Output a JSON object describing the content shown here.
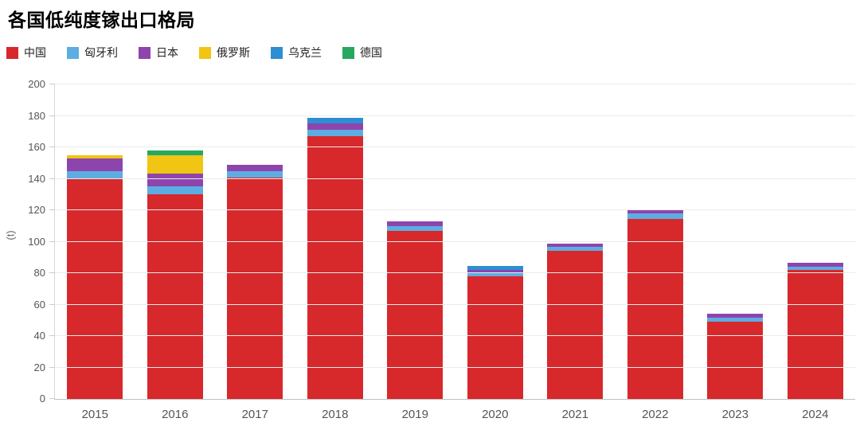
{
  "title": "各国低纯度镓出口格局",
  "y_axis": {
    "label": "(t)",
    "min": 0,
    "max": 200,
    "step": 20
  },
  "legend": [
    {
      "label": "中国",
      "color": "#d7282c"
    },
    {
      "label": "匈牙利",
      "color": "#5dade2"
    },
    {
      "label": "日本",
      "color": "#8e44ad"
    },
    {
      "label": "俄罗斯",
      "color": "#f0c514"
    },
    {
      "label": "乌克兰",
      "color": "#2d8ed3"
    },
    {
      "label": "德国",
      "color": "#27a85f"
    }
  ],
  "chart_data": {
    "type": "bar",
    "stacked": true,
    "title": "各国低纯度镓出口格局",
    "xlabel": "",
    "ylabel": "(t)",
    "ylim": [
      0,
      200
    ],
    "ytick_step": 20,
    "grid": true,
    "legend_position": "top-left",
    "categories": [
      "2015",
      "2016",
      "2017",
      "2018",
      "2019",
      "2020",
      "2021",
      "2022",
      "2023",
      "2024"
    ],
    "series": [
      {
        "name": "中国",
        "color": "#d7282c",
        "values": [
          140,
          130,
          141,
          167,
          107,
          78,
          94,
          114.5,
          49,
          82
        ]
      },
      {
        "name": "匈牙利",
        "color": "#5dade2",
        "values": [
          5,
          5,
          4,
          4,
          3,
          2,
          2.5,
          3.5,
          2.5,
          2
        ]
      },
      {
        "name": "日本",
        "color": "#8e44ad",
        "values": [
          8,
          8.5,
          4,
          4,
          3,
          2,
          2.5,
          2,
          2.5,
          2.5
        ]
      },
      {
        "name": "俄罗斯",
        "color": "#f0c514",
        "values": [
          2,
          11.5,
          0,
          0,
          0,
          0,
          0,
          0,
          0,
          0
        ]
      },
      {
        "name": "乌克兰",
        "color": "#2d8ed3",
        "values": [
          0,
          0,
          0,
          4,
          0,
          2.5,
          0,
          0,
          0,
          0
        ]
      },
      {
        "name": "德国",
        "color": "#27a85f",
        "values": [
          0,
          3,
          0,
          0,
          0,
          0,
          0,
          0,
          0,
          0
        ]
      }
    ],
    "totals": [
      155,
      158,
      149,
      179,
      113,
      84.5,
      99,
      120,
      54,
      86.5
    ]
  }
}
